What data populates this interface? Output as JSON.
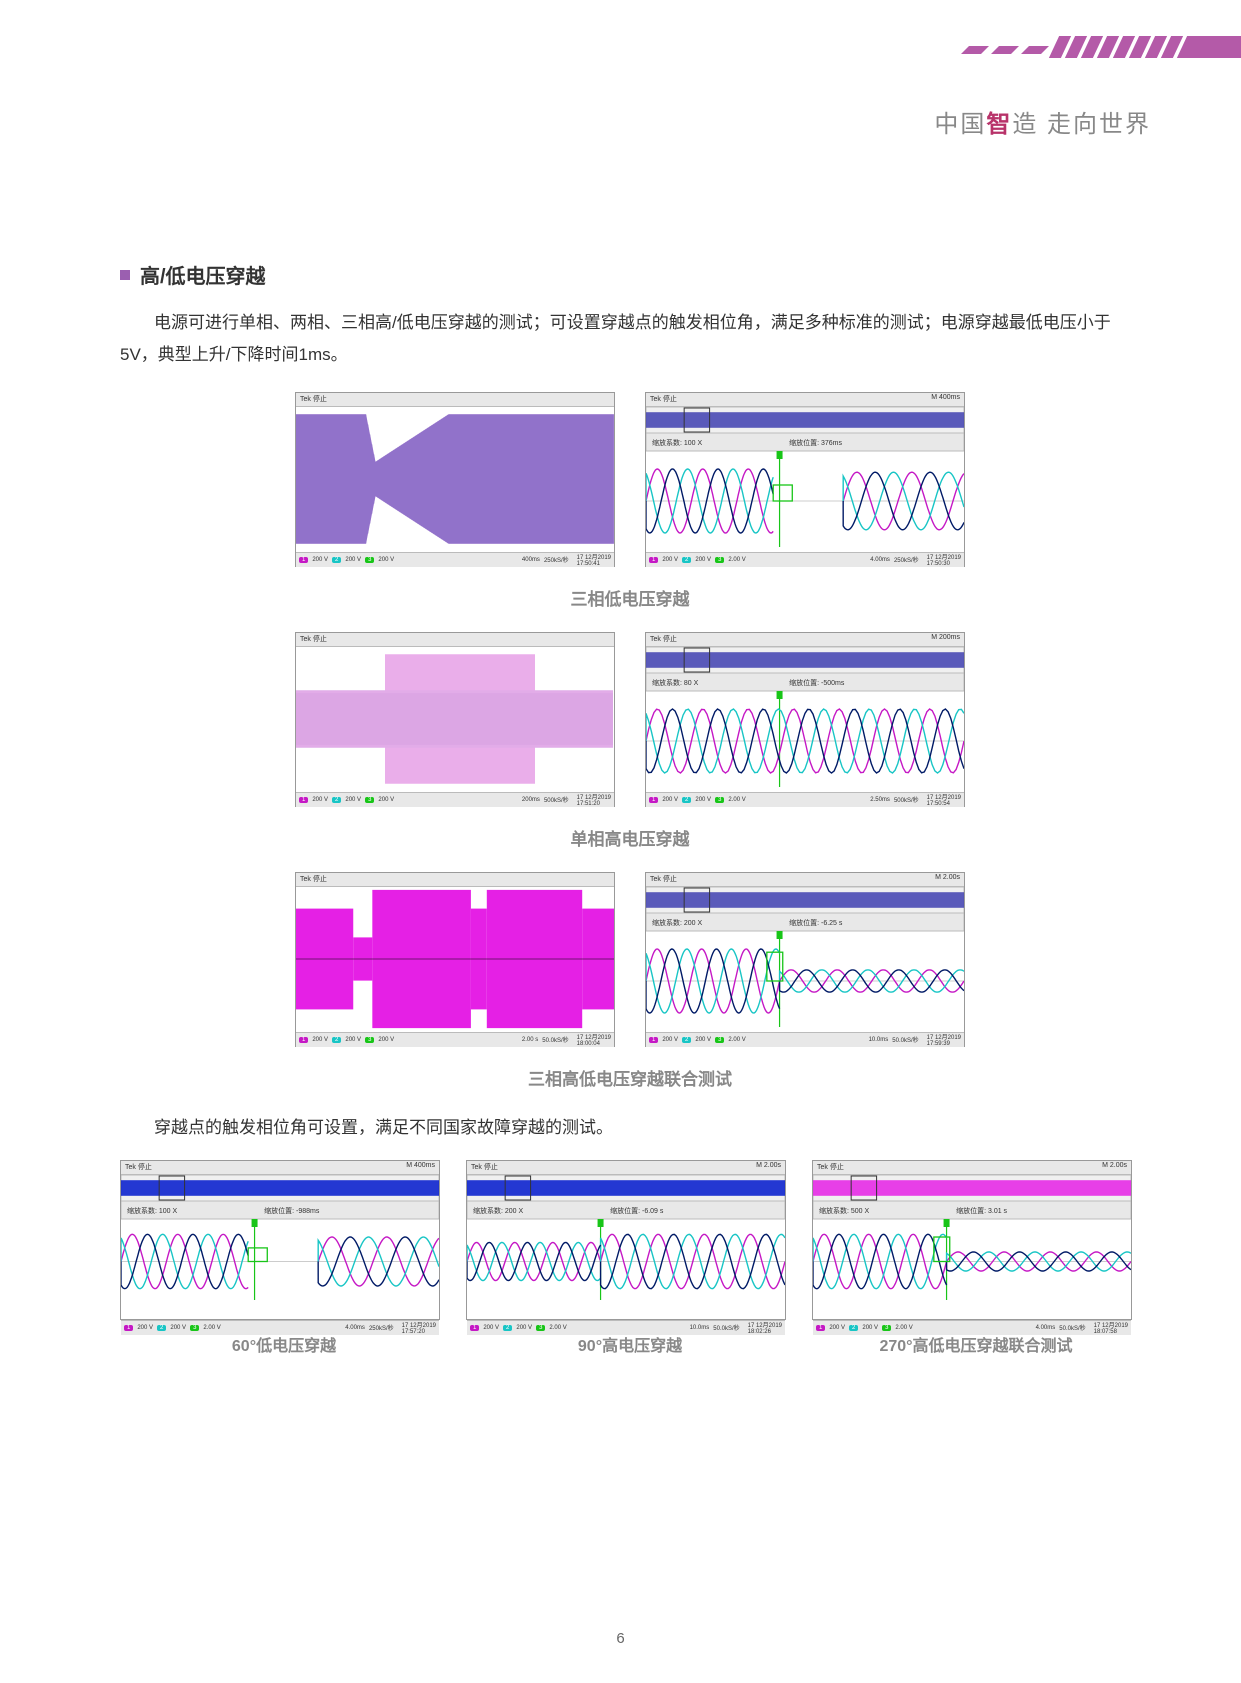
{
  "header": {
    "stripe_colors": [
      "#b45aa8",
      "#b45aa8",
      "#b45aa8",
      "#b45aa8",
      "#b45aa8",
      "#b45aa8",
      "#b45aa8",
      "#b45aa8"
    ],
    "slogan_prefix": "中国",
    "slogan_highlight": "智",
    "slogan_mid": "造",
    "slogan_suffix": "  走向世界"
  },
  "section": {
    "title": "高/低电压穿越",
    "paragraph": "电源可进行单相、两相、三相高/低电压穿越的测试；可设置穿越点的触发相位角，满足多种标准的测试；电源穿越最低电压小于5V，典型上升/下降时间1ms。"
  },
  "rows": [
    {
      "caption": "三相低电压穿越",
      "scopes": [
        {
          "type": "envelope",
          "header": "Tek 停止",
          "colors": {
            "trace1": "#c518c5",
            "trace2": "#18c5c5",
            "bg": "#ffffff"
          },
          "envelope_shape": "dip_wide",
          "footer": {
            "ch1": "200 V",
            "ch2": "200 V",
            "ch3": "200 V",
            "timebase": "400ms",
            "sample": "250kS/秒",
            "date": "17 12月2019",
            "time": "17:50:41"
          }
        },
        {
          "type": "zoom_sine",
          "header": "Tek 停止",
          "m_label": "M 400ms",
          "zoom_label1": "缩放系数: 100 X",
          "zoom_label2": "缩放位置: 376ms",
          "colors": {
            "trace1": "#c518c5",
            "trace2": "#18c5c5",
            "trace3": "#001a66",
            "bg": "#ffffff"
          },
          "sine_pattern": "gap_middle",
          "footer": {
            "ch1": "200 V",
            "ch2": "200 V",
            "ch3": "2.00 V",
            "timebase": "4.00ms",
            "sample": "250kS/秒",
            "date": "17 12月2019",
            "time": "17:50:30"
          }
        }
      ]
    },
    {
      "caption": "单相高电压穿越",
      "scopes": [
        {
          "type": "burst",
          "header": "Tek 停止",
          "colors": {
            "trace1": "#c518c5",
            "trace2": "#18c5c5",
            "trace3": "#001a66",
            "bg": "#ffffff"
          },
          "footer": {
            "ch1": "200 V",
            "ch2": "200 V",
            "ch3": "200 V",
            "timebase": "200ms",
            "sample": "500kS/秒",
            "date": "17 12月2019",
            "time": "17:51:20"
          }
        },
        {
          "type": "zoom_sine",
          "header": "Tek 停止",
          "m_label": "M 200ms",
          "zoom_label1": "缩放系数: 80 X",
          "zoom_label2": "缩放位置: -500ms",
          "colors": {
            "trace1": "#c518c5",
            "trace2": "#18c5c5",
            "trace3": "#001a66",
            "bg": "#ffffff"
          },
          "sine_pattern": "continuous",
          "footer": {
            "ch1": "200 V",
            "ch2": "200 V",
            "ch3": "2.00 V",
            "timebase": "2.50ms",
            "sample": "500kS/秒",
            "date": "17 12月2019",
            "time": "17:50:54"
          }
        }
      ]
    },
    {
      "caption": "三相高低电压穿越联合测试",
      "scopes": [
        {
          "type": "block_step",
          "header": "Tek 停止",
          "colors": {
            "fill": "#e520e5",
            "bg": "#ffffff"
          },
          "footer": {
            "ch1": "200 V",
            "ch2": "200 V",
            "ch3": "200 V",
            "timebase": "2.00 s",
            "sample": "50.0kS/秒",
            "date": "17 12月2019",
            "time": "18:00:04"
          }
        },
        {
          "type": "zoom_sine",
          "header": "Tek 停止",
          "m_label": "M 2.00s",
          "zoom_label1": "缩放系数: 200 X",
          "zoom_label2": "缩放位置: -6.25 s",
          "colors": {
            "trace1": "#c518c5",
            "trace2": "#18c5c5",
            "trace3": "#001a66",
            "bg": "#ffffff"
          },
          "sine_pattern": "decay",
          "footer": {
            "ch1": "200 V",
            "ch2": "200 V",
            "ch3": "2.00 V",
            "timebase": "10.0ms",
            "sample": "50.0kS/秒",
            "date": "17 12月2019",
            "time": "17:59:39"
          }
        }
      ]
    }
  ],
  "para2": "穿越点的触发相位角可设置，满足不同国家故障穿越的测试。",
  "row3": [
    {
      "caption": "60°低电压穿越",
      "header": "Tek 停止",
      "m_label": "M 400ms",
      "zoom_label1": "缩放系数: 100 X",
      "zoom_label2": "缩放位置: -988ms",
      "fill_color": "#0018cc",
      "colors": {
        "trace1": "#c518c5",
        "trace2": "#18c5c5",
        "trace3": "#001a66"
      },
      "sine_pattern": "gap_middle",
      "footer": {
        "ch1": "200 V",
        "ch2": "200 V",
        "ch3": "2.00 V",
        "timebase": "4.00ms",
        "sample": "250kS/秒",
        "date": "17 12月2019",
        "time": "17:57:20"
      }
    },
    {
      "caption": "90°高电压穿越",
      "header": "Tek 停止",
      "m_label": "M 2.00s",
      "zoom_label1": "缩放系数: 200 X",
      "zoom_label2": "缩放位置: -6.09 s",
      "fill_color": "#0018cc",
      "colors": {
        "trace1": "#c518c5",
        "trace2": "#18c5c5",
        "trace3": "#001a66"
      },
      "sine_pattern": "grow",
      "footer": {
        "ch1": "200 V",
        "ch2": "200 V",
        "ch3": "2.00 V",
        "timebase": "10.0ms",
        "sample": "50.0kS/秒",
        "date": "17 12月2019",
        "time": "18:02:26"
      }
    },
    {
      "caption": "270°高低电压穿越联合测试",
      "header": "Tek 停止",
      "m_label": "M 2.00s",
      "zoom_label1": "缩放系数: 500 X",
      "zoom_label2": "缩放位置: 3.01 s",
      "fill_color": "#e520e5",
      "colors": {
        "trace1": "#c518c5",
        "trace2": "#18c5c5",
        "trace3": "#001a66"
      },
      "sine_pattern": "decay",
      "footer": {
        "ch1": "200 V",
        "ch2": "200 V",
        "ch3": "2.00 V",
        "timebase": "4.00ms",
        "sample": "50.0kS/秒",
        "date": "17 12月2019",
        "time": "18:07:58"
      }
    }
  ],
  "page_number": "6"
}
